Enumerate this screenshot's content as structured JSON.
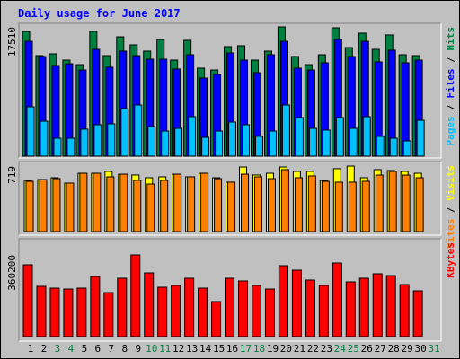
{
  "chart_data": [
    {
      "type": "bar",
      "title": "Daily usage for June 2017",
      "ylim": [
        0,
        17510
      ],
      "yticks": [
        17510
      ],
      "legend_separator": " / ",
      "series": [
        {
          "name": "Pages",
          "color": "#00C0FF",
          "values": [
            6690,
            4740,
            2430,
            2430,
            3650,
            4260,
            4380,
            6440,
            6930,
            4010,
            3400,
            3770,
            5350,
            2550,
            3400,
            4620,
            4260,
            2680,
            3400,
            6930,
            5230,
            3770,
            3530,
            5230,
            3770,
            5350,
            2680,
            2430,
            2070,
            4860,
            null
          ]
        },
        {
          "name": "Files",
          "color": "#0000FF",
          "values": [
            15560,
            13500,
            12280,
            12520,
            11670,
            14470,
            12040,
            14230,
            13620,
            13130,
            13130,
            11800,
            13740,
            10580,
            11070,
            13980,
            13010,
            11310,
            13740,
            15560,
            11920,
            11670,
            12650,
            15810,
            13500,
            15560,
            12770,
            14350,
            12650,
            13010,
            null
          ]
        },
        {
          "name": "Hits",
          "color": "#008040",
          "values": [
            16900,
            13620,
            13860,
            13010,
            12400,
            16900,
            13620,
            16170,
            15080,
            14230,
            15810,
            13010,
            15690,
            11920,
            11670,
            14840,
            14960,
            13010,
            14230,
            17510,
            13500,
            12400,
            13740,
            17390,
            14710,
            16660,
            14470,
            16420,
            13740,
            13620,
            null
          ]
        }
      ]
    },
    {
      "type": "bar",
      "ylim": [
        0,
        719
      ],
      "yticks": [
        719
      ],
      "legend_separator": " / ",
      "series": [
        {
          "name": "Sites",
          "color": "#FF8000",
          "values": [
            551,
            571,
            581,
            532,
            640,
            640,
            601,
            630,
            562,
            522,
            562,
            630,
            601,
            640,
            581,
            542,
            630,
            601,
            581,
            680,
            591,
            611,
            551,
            542,
            542,
            552,
            620,
            660,
            620,
            591,
            null
          ]
        },
        {
          "name": "Visits",
          "color": "#FFFF00",
          "values": [
            561,
            571,
            591,
            532,
            640,
            640,
            660,
            630,
            621,
            591,
            601,
            630,
            601,
            640,
            591,
            542,
            709,
            621,
            640,
            709,
            660,
            660,
            561,
            690,
            719,
            591,
            680,
            670,
            660,
            640,
            null
          ]
        }
      ]
    },
    {
      "type": "bar",
      "ylim": [
        0,
        360200
      ],
      "yticks": [
        360200
      ],
      "categories": [
        "1",
        "2",
        "3",
        "4",
        "5",
        "6",
        "7",
        "8",
        "9",
        "10",
        "11",
        "12",
        "13",
        "14",
        "15",
        "16",
        "17",
        "18",
        "19",
        "20",
        "21",
        "22",
        "23",
        "24",
        "25",
        "26",
        "27",
        "28",
        "29",
        "30",
        "31"
      ],
      "category_colors": [
        "#000000",
        "#000000",
        "#008040",
        "#008040",
        "#000000",
        "#000000",
        "#000000",
        "#000000",
        "#000000",
        "#008040",
        "#008040",
        "#000000",
        "#000000",
        "#000000",
        "#000000",
        "#000000",
        "#008040",
        "#008040",
        "#000000",
        "#000000",
        "#000000",
        "#000000",
        "#000000",
        "#008040",
        "#008040",
        "#000000",
        "#000000",
        "#000000",
        "#000000",
        "#000000",
        "#008040"
      ],
      "series": [
        {
          "name": "KBytes",
          "color": "#FF0000",
          "values": [
            316600,
            221600,
            213700,
            209800,
            213700,
            265200,
            193900,
            257300,
            360200,
            281000,
            217700,
            225600,
            257300,
            213700,
            154400,
            257300,
            245400,
            225600,
            209800,
            312700,
            292900,
            249400,
            225600,
            324600,
            241400,
            257300,
            277100,
            269100,
            229600,
            201900,
            null
          ]
        }
      ]
    }
  ]
}
